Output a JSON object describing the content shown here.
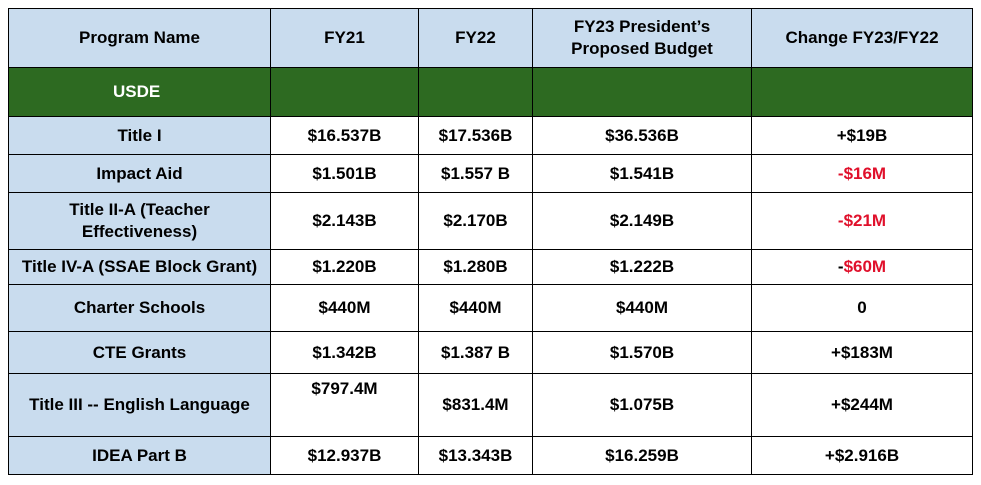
{
  "headers": {
    "program_name": "Program Name",
    "fy21": "FY21",
    "fy22": "FY22",
    "fy23": "FY23 President’s Proposed Budget",
    "change": "Change FY23/FY22"
  },
  "section": {
    "label": "USDE"
  },
  "rows": [
    {
      "name": "Title I",
      "fy21": "$16.537B",
      "fy22": "$17.536B",
      "fy23": "$36.536B",
      "change": "+$19B"
    },
    {
      "name": "Impact Aid",
      "fy21": "$1.501B",
      "fy22": "$1.557 B",
      "fy23": "$1.541B",
      "change": "-$16M"
    },
    {
      "name": "Title II-A (Teacher Effectiveness)",
      "fy21": "$2.143B",
      "fy22": "$2.170B",
      "fy23": "$2.149B",
      "change": "-$21M"
    },
    {
      "name": "Title IV-A (SSAE Block Grant)",
      "fy21": "$1.220B",
      "fy22": "$1.280B",
      "fy23": "$1.222B",
      "change_sign": "-",
      "change_rest": "$60M"
    },
    {
      "name": "Charter Schools",
      "fy21": "$440M",
      "fy22": "$440M",
      "fy23": "$440M",
      "change": "0"
    },
    {
      "name": "CTE Grants",
      "fy21": "$1.342B",
      "fy22": "$1.387 B",
      "fy23": "$1.570B",
      "change": "+$183M"
    },
    {
      "name": "Title III -- English Language",
      "fy21": "$797.4M",
      "fy22": "$831.4M",
      "fy23": "$1.075B",
      "change": "+$244M"
    },
    {
      "name": "IDEA Part B",
      "fy21": "$12.937B",
      "fy22": "$13.343B",
      "fy23": "$16.259B",
      "change": "+$2.916B"
    }
  ],
  "colors": {
    "header_bg": "#c9dcee",
    "section_bg": "#2d6a21",
    "negative_text": "#e0102b"
  }
}
